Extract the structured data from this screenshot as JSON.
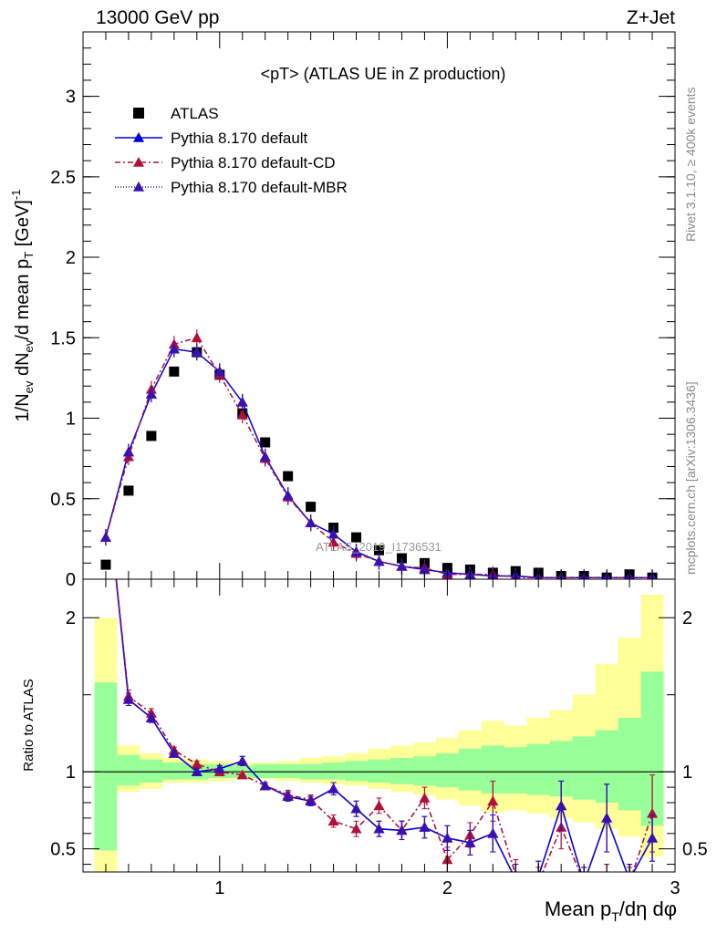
{
  "header": {
    "left": "13000 GeV pp",
    "right": "Z+Jet",
    "side_top": "Rivet 3.1.10, ≥ 400k events",
    "side_bottom": "mcplots.cern.ch [arXiv:1306.3436]",
    "watermark": "ATLAS_2019_I1736531"
  },
  "chart_data": [
    {
      "type": "scatter",
      "panel": "main",
      "title": "<pT> (ATLAS UE in Z production)",
      "xlabel": "Mean p_T/dη dφ",
      "ylabel": "1/N_ev dN_ev/d mean p_T [GeV]^-1",
      "xlim": [
        0.4,
        3.0
      ],
      "ylim": [
        0,
        3.4
      ],
      "yticks": [
        "0",
        "0.5",
        "1",
        "1.5",
        "2",
        "2.5",
        "3"
      ],
      "legend_position": "top-left",
      "series": [
        {
          "name": "ATLAS",
          "color": "#000000",
          "marker": "square",
          "x": [
            0.5,
            0.6,
            0.7,
            0.8,
            0.9,
            1.0,
            1.1,
            1.2,
            1.3,
            1.4,
            1.5,
            1.6,
            1.7,
            1.8,
            1.9,
            2.0,
            2.1,
            2.2,
            2.3,
            2.4,
            2.5,
            2.6,
            2.7,
            2.8,
            2.9
          ],
          "y": [
            0.09,
            0.55,
            0.89,
            1.29,
            1.41,
            1.27,
            1.03,
            0.85,
            0.64,
            0.45,
            0.32,
            0.26,
            0.18,
            0.13,
            0.1,
            0.07,
            0.06,
            0.04,
            0.05,
            0.04,
            0.02,
            0.02,
            0.01,
            0.03,
            0.01
          ]
        },
        {
          "name": "Pythia 8.170 default",
          "color": "#0000dd",
          "marker": "triangle",
          "dash": "",
          "x": [
            0.5,
            0.6,
            0.7,
            0.8,
            0.9,
            1.0,
            1.1,
            1.2,
            1.3,
            1.4,
            1.5,
            1.6,
            1.7,
            1.8,
            1.9,
            2.0,
            2.1,
            2.2,
            2.3,
            2.4,
            2.5,
            2.6,
            2.7,
            2.8,
            2.9
          ],
          "y": [
            0.26,
            0.79,
            1.15,
            1.43,
            1.41,
            1.29,
            1.1,
            0.76,
            0.52,
            0.35,
            0.28,
            0.17,
            0.11,
            0.08,
            0.06,
            0.04,
            0.03,
            0.02,
            0.02,
            0.01,
            0.01,
            0.01,
            0.01,
            0.01,
            0.01
          ]
        },
        {
          "name": "Pythia 8.170 default-CD",
          "color": "#b0103a",
          "marker": "triangle",
          "dash": "6,3,2,3",
          "x": [
            0.5,
            0.6,
            0.7,
            0.8,
            0.9,
            1.0,
            1.1,
            1.2,
            1.3,
            1.4,
            1.5,
            1.6,
            1.7,
            1.8,
            1.9,
            2.0,
            2.1,
            2.2,
            2.3,
            2.4,
            2.5,
            2.6,
            2.7,
            2.8,
            2.9
          ],
          "y": [
            0.26,
            0.76,
            1.18,
            1.46,
            1.5,
            1.27,
            1.02,
            0.75,
            0.51,
            0.35,
            0.23,
            0.16,
            0.11,
            0.08,
            0.07,
            0.03,
            0.03,
            0.03,
            0.01,
            0.01,
            0.01,
            0.01,
            0.01,
            0.01,
            0.01
          ]
        },
        {
          "name": "Pythia 8.170 default-MBR",
          "color": "#3a10b0",
          "marker": "triangle",
          "dash": "1,2",
          "x": [
            0.5,
            0.6,
            0.7,
            0.8,
            0.9,
            1.0,
            1.1,
            1.2,
            1.3,
            1.4,
            1.5,
            1.6,
            1.7,
            1.8,
            1.9,
            2.0,
            2.1,
            2.2,
            2.3,
            2.4,
            2.5,
            2.6,
            2.7,
            2.8,
            2.9
          ],
          "y": [
            0.26,
            0.79,
            1.15,
            1.43,
            1.41,
            1.29,
            1.1,
            0.76,
            0.52,
            0.35,
            0.28,
            0.17,
            0.11,
            0.08,
            0.06,
            0.04,
            0.03,
            0.02,
            0.02,
            0.01,
            0.01,
            0.01,
            0.01,
            0.01,
            0.01
          ]
        }
      ]
    },
    {
      "type": "line",
      "panel": "ratio",
      "ylabel": "Ratio to ATLAS",
      "xlabel": "Mean p_T/dη dφ",
      "xlim": [
        0.4,
        3.0
      ],
      "ylim": [
        0.35,
        2.25
      ],
      "xticks": [
        "1",
        "2",
        "3"
      ],
      "yticks": [
        "0.5",
        "1",
        "2"
      ],
      "band_x": [
        0.45,
        0.55,
        0.65,
        0.75,
        0.85,
        0.95,
        1.05,
        1.15,
        1.25,
        1.35,
        1.45,
        1.55,
        1.65,
        1.75,
        1.85,
        1.95,
        2.05,
        2.15,
        2.25,
        2.35,
        2.45,
        2.55,
        2.65,
        2.75,
        2.85,
        2.95
      ],
      "band_inner_color": "#99ff99",
      "band_outer_color": "#ffff99",
      "band_inner_up": [
        1.58,
        1.11,
        1.08,
        1.06,
        1.05,
        1.05,
        1.04,
        1.05,
        1.05,
        1.05,
        1.06,
        1.07,
        1.08,
        1.09,
        1.1,
        1.12,
        1.15,
        1.17,
        1.16,
        1.18,
        1.2,
        1.23,
        1.27,
        1.35,
        1.65
      ],
      "band_inner_dn": [
        0.49,
        0.91,
        0.93,
        0.95,
        0.95,
        0.96,
        0.96,
        0.96,
        0.96,
        0.95,
        0.95,
        0.94,
        0.93,
        0.92,
        0.91,
        0.9,
        0.88,
        0.86,
        0.86,
        0.85,
        0.84,
        0.82,
        0.8,
        0.75,
        0.65
      ],
      "band_outer_up": [
        2.0,
        1.17,
        1.12,
        1.09,
        1.08,
        1.07,
        1.06,
        1.06,
        1.07,
        1.09,
        1.1,
        1.12,
        1.15,
        1.17,
        1.19,
        1.22,
        1.27,
        1.33,
        1.3,
        1.35,
        1.4,
        1.5,
        1.7,
        1.87,
        2.15
      ],
      "band_outer_dn": [
        0.35,
        0.87,
        0.89,
        0.93,
        0.93,
        0.94,
        0.95,
        0.95,
        0.94,
        0.93,
        0.92,
        0.91,
        0.89,
        0.87,
        0.85,
        0.82,
        0.78,
        0.74,
        0.75,
        0.73,
        0.7,
        0.67,
        0.63,
        0.58,
        0.45
      ],
      "series": [
        {
          "name": "Pythia 8.170 default",
          "color": "#0000dd",
          "dash": "",
          "x": [
            0.5,
            0.6,
            0.7,
            0.8,
            0.9,
            1.0,
            1.1,
            1.2,
            1.3,
            1.4,
            1.5,
            1.6,
            1.7,
            1.8,
            1.9,
            2.0,
            2.1,
            2.2,
            2.3,
            2.4,
            2.5,
            2.6,
            2.7,
            2.8,
            2.9
          ],
          "y": [
            2.9,
            1.47,
            1.35,
            1.12,
            1.0,
            1.02,
            1.07,
            0.91,
            0.84,
            0.81,
            0.89,
            0.76,
            0.63,
            0.62,
            0.64,
            0.57,
            0.54,
            0.6,
            0.3,
            0.32,
            0.78,
            0.28,
            0.7,
            0.3,
            0.57
          ],
          "err": [
            0.05,
            0.04,
            0.03,
            0.02,
            0.02,
            0.02,
            0.03,
            0.02,
            0.03,
            0.03,
            0.04,
            0.05,
            0.05,
            0.06,
            0.07,
            0.08,
            0.08,
            0.12,
            0.1,
            0.1,
            0.16,
            0.1,
            0.22,
            0.1,
            0.15
          ]
        },
        {
          "name": "Pythia 8.170 default-CD",
          "color": "#b0103a",
          "dash": "6,3,2,3",
          "x": [
            0.5,
            0.6,
            0.7,
            0.8,
            0.9,
            1.0,
            1.1,
            1.2,
            1.3,
            1.4,
            1.5,
            1.6,
            1.7,
            1.8,
            1.9,
            2.0,
            2.1,
            2.2,
            2.3,
            2.4,
            2.5,
            2.6,
            2.7,
            2.8,
            2.9
          ],
          "y": [
            2.9,
            1.49,
            1.38,
            1.14,
            1.05,
            1.0,
            0.98,
            0.91,
            0.85,
            0.82,
            0.68,
            0.63,
            0.78,
            0.62,
            0.83,
            0.43,
            0.59,
            0.81,
            0.33,
            0.28,
            0.64,
            0.28,
            0.3,
            0.28,
            0.73
          ],
          "err": [
            0.05,
            0.04,
            0.03,
            0.02,
            0.02,
            0.02,
            0.02,
            0.02,
            0.03,
            0.03,
            0.04,
            0.05,
            0.05,
            0.06,
            0.07,
            0.08,
            0.08,
            0.13,
            0.1,
            0.1,
            0.14,
            0.1,
            0.1,
            0.1,
            0.25
          ]
        },
        {
          "name": "Pythia 8.170 default-MBR",
          "color": "#3a10b0",
          "dash": "1,2",
          "x": [
            0.5,
            0.6,
            0.7,
            0.8,
            0.9,
            1.0,
            1.1,
            1.2,
            1.3,
            1.4,
            1.5,
            1.6,
            1.7,
            1.8,
            1.9,
            2.0,
            2.1,
            2.2,
            2.3,
            2.4,
            2.5,
            2.6,
            2.7,
            2.8,
            2.9
          ],
          "y": [
            2.9,
            1.47,
            1.35,
            1.12,
            1.0,
            1.02,
            1.07,
            0.91,
            0.84,
            0.81,
            0.89,
            0.76,
            0.63,
            0.62,
            0.64,
            0.57,
            0.54,
            0.6,
            0.3,
            0.32,
            0.78,
            0.28,
            0.7,
            0.3,
            0.57
          ],
          "err": [
            0.05,
            0.04,
            0.03,
            0.02,
            0.02,
            0.02,
            0.03,
            0.02,
            0.03,
            0.03,
            0.04,
            0.05,
            0.05,
            0.06,
            0.07,
            0.08,
            0.08,
            0.12,
            0.1,
            0.1,
            0.16,
            0.1,
            0.22,
            0.1,
            0.15
          ]
        }
      ]
    }
  ]
}
